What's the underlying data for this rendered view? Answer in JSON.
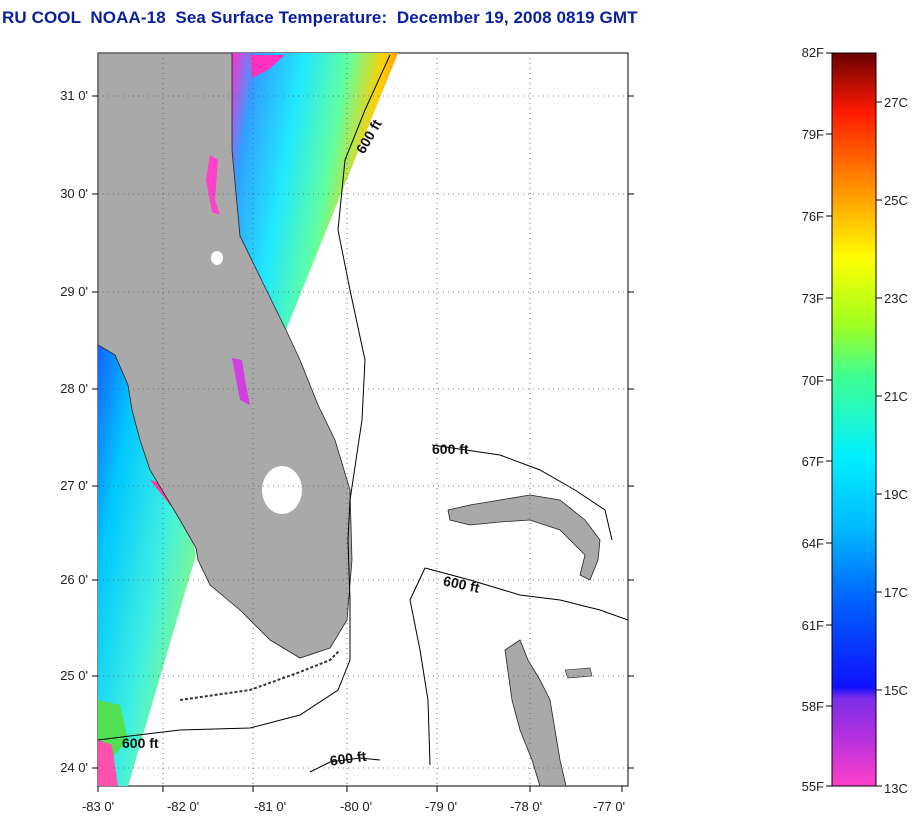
{
  "title": "RU COOL  NOAA-18  Sea Surface Temperature:  December 19, 2008 0819 GMT",
  "map": {
    "lon_labels": [
      "-83 0'",
      "-82 0'",
      "-81 0'",
      "-80 0'",
      "-79 0'",
      "-78 0'",
      "-77 0'"
    ],
    "lat_labels": [
      "31 0'",
      "30 0'",
      "29 0'",
      "28 0'",
      "27 0'",
      "26 0'",
      "25 0'",
      "24 0'"
    ],
    "contour_labels": [
      "600 ft",
      "600 ft",
      "600 ft",
      "600 ft",
      "600 ft"
    ],
    "land_color": "#a9a9a9",
    "grid": "dotted"
  },
  "colorbar": {
    "f_labels": [
      "82F",
      "79F",
      "76F",
      "73F",
      "70F",
      "67F",
      "64F",
      "61F",
      "58F",
      "55F"
    ],
    "c_labels": [
      "27C",
      "25C",
      "23C",
      "21C",
      "19C",
      "17C",
      "15C",
      "13C"
    ],
    "colors": [
      "#ff3fc0",
      "#8a2be2",
      "#0000ff",
      "#00bfff",
      "#00ffff",
      "#7fff00",
      "#ffff00",
      "#ff7f00",
      "#ff0000",
      "#6b0000"
    ]
  }
}
